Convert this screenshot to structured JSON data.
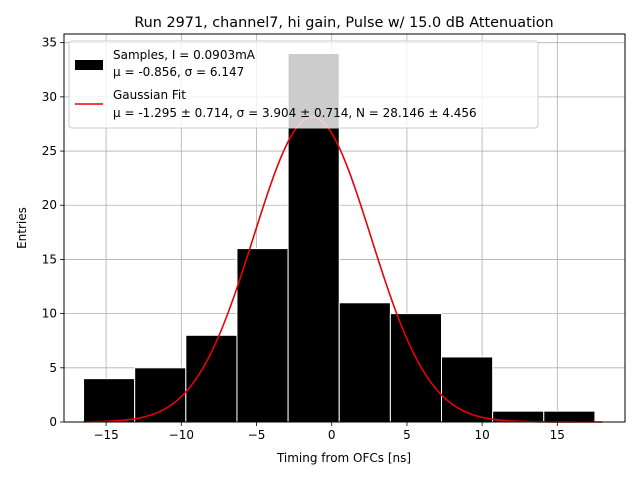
{
  "chart_data": {
    "type": "bar",
    "title": "Run 2971, channel7, hi gain, Pulse w/ 15.0 dB Attenuation",
    "xlabel": "Timing from OFCs [ns]",
    "ylabel": "Entries",
    "xlim": [
      -17.8,
      19.5
    ],
    "ylim": [
      0,
      35.8
    ],
    "grid": true,
    "legend_position": "top-left",
    "bins": [
      {
        "x0": -16.5,
        "x1": -13.1,
        "value": 4
      },
      {
        "x0": -13.1,
        "x1": -9.7,
        "value": 5
      },
      {
        "x0": -9.7,
        "x1": -6.3,
        "value": 8
      },
      {
        "x0": -6.3,
        "x1": -2.9,
        "value": 16
      },
      {
        "x0": -2.9,
        "x1": 0.5,
        "value": 34
      },
      {
        "x0": 0.5,
        "x1": 3.9,
        "value": 11
      },
      {
        "x0": 3.9,
        "x1": 7.3,
        "value": 10
      },
      {
        "x0": 7.3,
        "x1": 10.7,
        "value": 6
      },
      {
        "x0": 10.7,
        "x1": 14.1,
        "value": 1
      },
      {
        "x0": 14.1,
        "x1": 17.5,
        "value": 1
      }
    ],
    "fit": {
      "mu": -1.295,
      "sigma": 3.904,
      "N": 28.146,
      "x_range": [
        -16.5,
        18.0
      ]
    },
    "x_ticks": [
      -15,
      -10,
      -5,
      0,
      5,
      10,
      15
    ],
    "x_tick_labels": [
      "−15",
      "−10",
      "−5",
      "0",
      "5",
      "10",
      "15"
    ],
    "y_ticks": [
      0,
      5,
      10,
      15,
      20,
      25,
      30,
      35
    ],
    "y_tick_labels": [
      "0",
      "5",
      "10",
      "15",
      "20",
      "25",
      "30",
      "35"
    ],
    "legend": {
      "samples_line1": "Samples, I = 0.0903mA",
      "samples_line2": "μ = -0.856, σ = 6.147",
      "fit_line1": "Gaussian Fit",
      "fit_line2": "μ = -1.295 ± 0.714, σ = 3.904 ± 0.714, N = 28.146 ± 4.456"
    },
    "colors": {
      "bars": "#000000",
      "bar_edge": "#ffffff",
      "fit": "#e8000b",
      "grid": "#b0b0b0"
    }
  }
}
